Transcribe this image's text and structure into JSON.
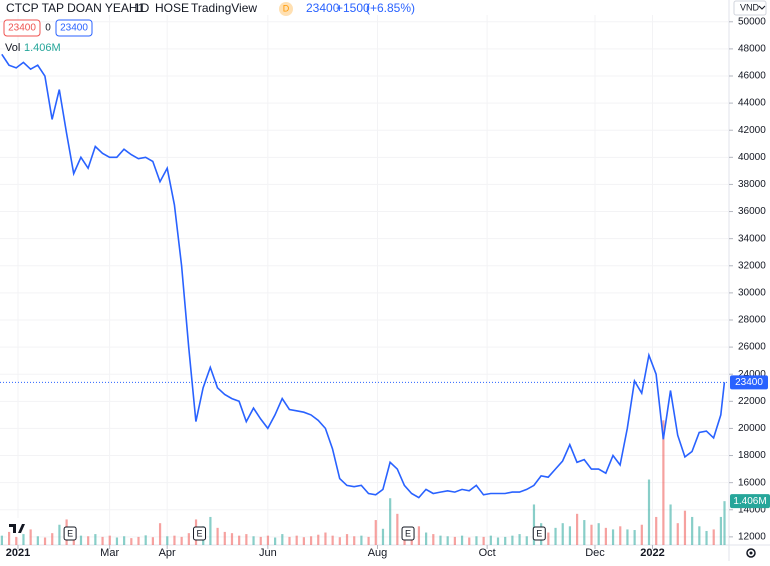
{
  "chart_data": {
    "type": "line",
    "title": "CTCP TAP DOAN YEAH1",
    "interval": "1D",
    "exchange": "HOSE",
    "source": "TradingView",
    "badge": "D",
    "last_price": 23400,
    "change": {
      "value": 1500,
      "label": "+1500"
    },
    "change_pct": {
      "value": 6.85,
      "label": "(+6.85%)"
    },
    "bid": 23400,
    "spread": 0,
    "ask": 23400,
    "currency": "VND",
    "color": "#2962ff",
    "x": [
      0,
      4,
      8,
      12,
      16,
      20,
      24,
      28,
      32,
      36,
      40,
      44,
      48,
      52,
      56,
      60,
      64,
      68,
      72,
      76,
      80,
      84,
      88,
      92,
      96,
      100,
      104,
      108,
      112,
      116,
      120,
      124,
      128,
      132,
      136,
      140,
      144,
      148,
      152,
      156,
      160,
      164,
      168,
      172,
      176,
      180,
      184,
      188,
      192,
      196,
      200,
      204,
      208,
      212,
      216,
      220,
      224,
      228,
      232,
      236,
      240,
      244,
      248,
      252,
      256,
      260,
      264,
      268,
      272,
      276,
      280,
      284,
      288,
      292,
      296,
      300,
      304,
      308,
      312,
      316,
      320,
      324,
      328,
      332,
      336,
      340,
      344,
      348,
      352,
      356,
      360,
      364,
      368,
      372,
      376,
      380,
      384,
      388,
      392,
      396,
      400,
      402
    ],
    "values": [
      47600,
      46800,
      46600,
      47000,
      46500,
      46800,
      46000,
      42800,
      45000,
      41800,
      38800,
      40000,
      39200,
      40800,
      40300,
      40000,
      40000,
      40600,
      40200,
      39900,
      40000,
      39700,
      38200,
      39200,
      36500,
      32000,
      26000,
      20500,
      23000,
      24500,
      23000,
      22500,
      22200,
      22000,
      20500,
      21500,
      20700,
      20000,
      21000,
      22200,
      21400,
      21300,
      21200,
      21000,
      20600,
      20000,
      18500,
      16300,
      15800,
      15700,
      15800,
      15200,
      15100,
      15500,
      17500,
      17000,
      15800,
      15200,
      14900,
      15500,
      15200,
      15300,
      15400,
      15300,
      15500,
      15400,
      15800,
      15100,
      15200,
      15200,
      15200,
      15300,
      15300,
      15500,
      15800,
      16500,
      16400,
      17000,
      17600,
      18800,
      17500,
      17700,
      17000,
      17000,
      16700,
      18000,
      17300,
      20000,
      23500,
      22600,
      25400,
      24000,
      19200,
      22800,
      19500,
      17900,
      18300,
      19700,
      19800,
      19300,
      21000,
      23400
    ],
    "xlim": [
      -1,
      404
    ],
    "xticks": [
      {
        "value": 9,
        "label": "2021"
      },
      {
        "value": 60,
        "label": "Mar"
      },
      {
        "value": 92,
        "label": "Apr"
      },
      {
        "value": 148,
        "label": "Jun"
      },
      {
        "value": 209,
        "label": "Aug"
      },
      {
        "value": 270,
        "label": "Oct"
      },
      {
        "value": 330,
        "label": "Dec"
      },
      {
        "value": 362,
        "label": "2022"
      }
    ],
    "ylim": [
      11400,
      50500
    ],
    "yticks": [
      12000,
      14000,
      16000,
      18000,
      20000,
      22000,
      24000,
      26000,
      28000,
      30000,
      32000,
      34000,
      36000,
      38000,
      40000,
      42000,
      44000,
      46000,
      48000,
      50000
    ],
    "volume": {
      "label": "Vol",
      "last": {
        "value": 1406000,
        "label": "1.406M"
      },
      "up_color": "#26a69a",
      "down_color": "#ef5350",
      "ylim": [
        0,
        17000000
      ],
      "values": [
        300000,
        420000,
        260000,
        350000,
        500000,
        280000,
        240000,
        380000,
        650000,
        820000,
        400000,
        300000,
        280000,
        350000,
        260000,
        300000,
        240000,
        280000,
        220000,
        260000,
        310000,
        250000,
        700000,
        280000,
        300000,
        260000,
        380000,
        820000,
        600000,
        900000,
        550000,
        420000,
        380000,
        300000,
        350000,
        280000,
        260000,
        300000,
        240000,
        350000,
        260000,
        300000,
        250000,
        280000,
        330000,
        400000,
        300000,
        250000,
        350000,
        280000,
        300000,
        260000,
        800000,
        520000,
        1500000,
        1000000,
        480000,
        520000,
        600000,
        400000,
        350000,
        300000,
        280000,
        260000,
        300000,
        240000,
        280000,
        260000,
        300000,
        240000,
        260000,
        300000,
        350000,
        280000,
        1300000,
        700000,
        400000,
        550000,
        700000,
        600000,
        1000000,
        800000,
        650000,
        700000,
        550000,
        500000,
        600000,
        500000,
        480000,
        650000,
        2100000,
        900000,
        4000000,
        1300000,
        700000,
        1100000,
        900000,
        600000,
        450000,
        500000,
        900000,
        1406000
      ]
    },
    "events": [
      {
        "x": 38,
        "label": "E"
      },
      {
        "x": 110,
        "label": "E"
      },
      {
        "x": 226,
        "label": "E"
      },
      {
        "x": 299,
        "label": "E"
      }
    ]
  }
}
